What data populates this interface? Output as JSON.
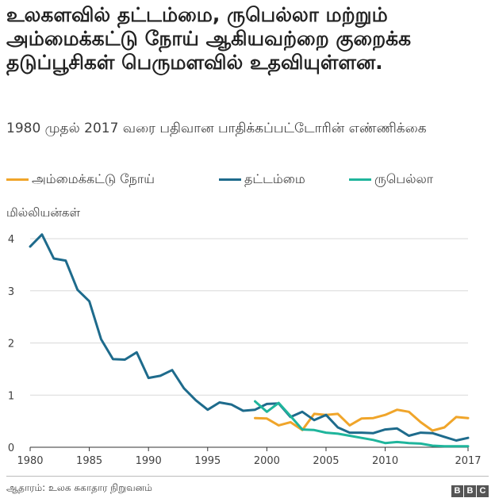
{
  "title": "உலகளவில் தட்டம்மை, ருபெல்லா மற்றும் அம்மைக்கட்டு நோய் ஆகியவற்றை  குறைக்க தடுப்பூசிகள் பெருமளவில் உதவியுள்ளன.",
  "subtitle": "1980 முதல் 2017 வரை பதிவான பாதிக்கப்பட்டோரின் எண்ணிக்கை",
  "source": "ஆதாரம்: உலக சுகாதார நிறுவனம்",
  "logo": [
    "B",
    "B",
    "C"
  ],
  "colors": {
    "mumps": "#f0a52a",
    "measles": "#1e6b8c",
    "rubella": "#1fb59c",
    "grid": "#d9d9d9",
    "axis": "#333333"
  },
  "chart_data": {
    "type": "line",
    "ylabel": "மில்லியன்கள்",
    "xlim": [
      1980,
      2017
    ],
    "ylim": [
      0,
      4
    ],
    "x_ticks": [
      1980,
      1985,
      1990,
      1995,
      2000,
      2005,
      2010,
      2017
    ],
    "y_ticks": [
      0,
      1,
      2,
      3,
      4
    ],
    "grid": true,
    "legend_position": "top",
    "series": [
      {
        "key": "mumps",
        "name": "அம்மைக்கட்டு நோய்",
        "x": [
          1999,
          2000,
          2001,
          2002,
          2003,
          2004,
          2005,
          2006,
          2007,
          2008,
          2009,
          2010,
          2011,
          2012,
          2013,
          2014,
          2015,
          2016,
          2017
        ],
        "y": [
          0.56,
          0.55,
          0.42,
          0.48,
          0.33,
          0.64,
          0.62,
          0.64,
          0.42,
          0.55,
          0.56,
          0.62,
          0.72,
          0.68,
          0.48,
          0.32,
          0.38,
          0.58,
          0.56
        ]
      },
      {
        "key": "measles",
        "name": "தட்டம்மை",
        "x": [
          1980,
          1981,
          1982,
          1983,
          1984,
          1985,
          1986,
          1987,
          1988,
          1989,
          1990,
          1991,
          1992,
          1993,
          1994,
          1995,
          1996,
          1997,
          1998,
          1999,
          2000,
          2001,
          2002,
          2003,
          2004,
          2005,
          2006,
          2007,
          2008,
          2009,
          2010,
          2011,
          2012,
          2013,
          2014,
          2015,
          2016,
          2017
        ],
        "y": [
          3.85,
          4.08,
          3.62,
          3.58,
          3.02,
          2.8,
          2.07,
          1.69,
          1.68,
          1.82,
          1.33,
          1.37,
          1.48,
          1.13,
          0.9,
          0.72,
          0.86,
          0.82,
          0.7,
          0.72,
          0.83,
          0.84,
          0.58,
          0.68,
          0.52,
          0.62,
          0.38,
          0.28,
          0.28,
          0.27,
          0.34,
          0.36,
          0.22,
          0.28,
          0.27,
          0.2,
          0.13,
          0.18
        ]
      },
      {
        "key": "rubella",
        "name": "ருபெல்லா",
        "x": [
          1999,
          2000,
          2001,
          2002,
          2003,
          2004,
          2005,
          2006,
          2007,
          2008,
          2009,
          2010,
          2011,
          2012,
          2013,
          2014,
          2015,
          2016,
          2017
        ],
        "y": [
          0.88,
          0.68,
          0.85,
          0.6,
          0.34,
          0.33,
          0.28,
          0.26,
          0.22,
          0.18,
          0.14,
          0.08,
          0.1,
          0.08,
          0.07,
          0.03,
          0.02,
          0.02,
          0.02
        ]
      }
    ]
  }
}
